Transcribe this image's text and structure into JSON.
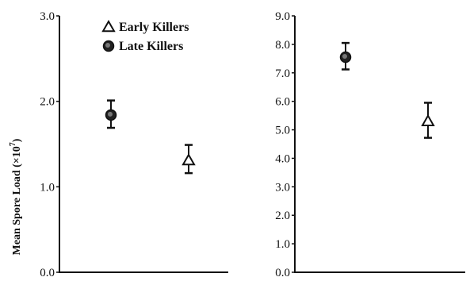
{
  "ylabel": "Mean Spore Load (×10",
  "ylabel_exponent": "7",
  "ylabel_close": ")",
  "chart_data": [
    {
      "type": "scatter",
      "title": "",
      "xlabel": "",
      "ylabel": "Mean Spore Load (×10^7)",
      "ylim": [
        0,
        3.0
      ],
      "yticks": [
        "0.0",
        "1.0",
        "2.0",
        "3.0"
      ],
      "grid": false,
      "legend": {
        "placement": "top-left"
      },
      "series": [
        {
          "name": "Late Killers",
          "marker": "filled-circle",
          "values": [
            1.84
          ],
          "error_low": [
            1.69
          ],
          "error_high": [
            2.01
          ]
        },
        {
          "name": "Early Killers",
          "marker": "open-triangle",
          "values": [
            1.31
          ],
          "error_low": [
            1.16
          ],
          "error_high": [
            1.49
          ]
        }
      ]
    },
    {
      "type": "scatter",
      "title": "",
      "xlabel": "",
      "ylabel": "",
      "ylim": [
        0,
        9.0
      ],
      "yticks": [
        "0.0",
        "1.0",
        "2.0",
        "3.0",
        "4.0",
        "5.0",
        "6.0",
        "7.0",
        "8.0",
        "9.0"
      ],
      "grid": false,
      "series": [
        {
          "name": "Late Killers",
          "marker": "filled-circle",
          "values": [
            7.55
          ],
          "error_low": [
            7.12
          ],
          "error_high": [
            8.05
          ]
        },
        {
          "name": "Early Killers",
          "marker": "open-triangle",
          "values": [
            5.3
          ],
          "error_low": [
            4.72
          ],
          "error_high": [
            5.95
          ]
        }
      ]
    }
  ]
}
